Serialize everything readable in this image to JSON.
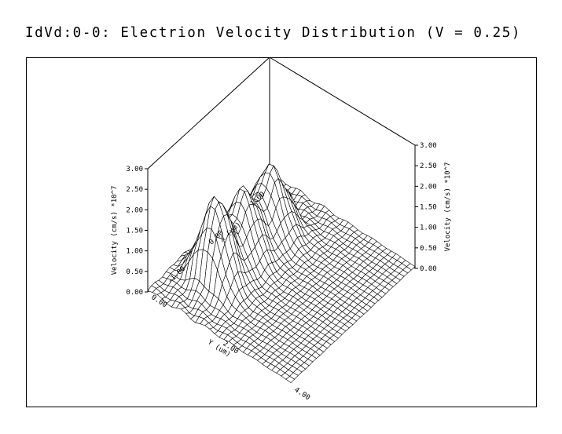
{
  "title": "IdVd:0-0: Electrion Velocity Distribution (V = 0.25)",
  "chart_data": {
    "type": "surface",
    "title": "IdVd:0-0: Electrion Velocity Distribution (V = 0.25)",
    "z_axis": {
      "label": "Velocity (cm/s) *10^7",
      "ticks": [
        "0.00",
        "0.50",
        "1.00",
        "1.50",
        "2.00",
        "2.50",
        "3.00"
      ],
      "range": [
        0,
        3
      ]
    },
    "y_axis": {
      "label": "Y (um)",
      "ticks": [
        "0.00",
        "2.00",
        "4.00"
      ],
      "range": [
        0,
        4
      ]
    },
    "x_axis": {
      "label": "X (um)",
      "ticks": [
        "-1.00",
        "0.00",
        "1.00"
      ],
      "range": [
        -1.5,
        1.5
      ]
    },
    "surface_peaks": [
      {
        "x": -0.7,
        "y": 1.0,
        "z": 1.6
      },
      {
        "x": -0.05,
        "y": 1.0,
        "z": 1.2
      },
      {
        "x": 0.6,
        "y": 1.0,
        "z": 1.15
      }
    ],
    "surface_base": 0.05,
    "grid": "wireframe"
  }
}
